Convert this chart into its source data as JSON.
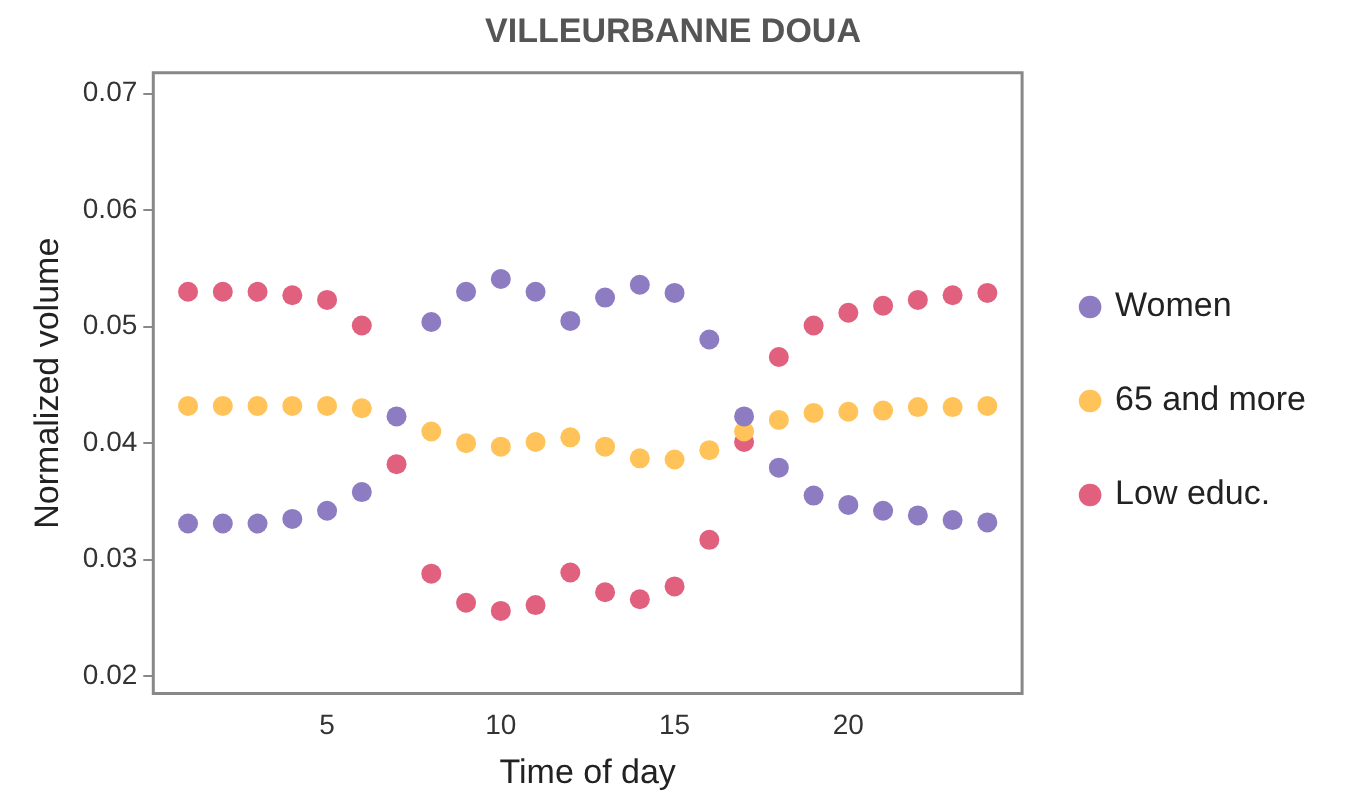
{
  "chart_data": {
    "type": "scatter",
    "title": "VILLEURBANNE DOUA",
    "xlabel": "Time of day",
    "ylabel": "Normalized volume",
    "x": [
      1,
      2,
      3,
      4,
      5,
      6,
      7,
      8,
      9,
      10,
      11,
      12,
      13,
      14,
      15,
      16,
      17,
      18,
      19,
      20,
      21,
      22,
      23,
      24
    ],
    "series": [
      {
        "name": "Women",
        "color": "#8e7cc3",
        "values": [
          0.0331,
          0.0331,
          0.0331,
          0.0335,
          0.0342,
          0.0358,
          0.0423,
          0.0504,
          0.053,
          0.0541,
          0.053,
          0.0505,
          0.0525,
          0.0536,
          0.0529,
          0.0489,
          0.0423,
          0.0379,
          0.0355,
          0.0347,
          0.0342,
          0.0338,
          0.0334,
          0.0332
        ]
      },
      {
        "name": "65 and more",
        "color": "#ffc35a",
        "values": [
          0.0432,
          0.0432,
          0.0432,
          0.0432,
          0.0432,
          0.043,
          null,
          0.041,
          0.04,
          0.0397,
          0.0401,
          0.0405,
          0.0397,
          0.0387,
          0.0386,
          0.0394,
          0.041,
          0.042,
          0.0426,
          0.0427,
          0.0428,
          0.0431,
          0.0431,
          0.0432
        ]
      },
      {
        "name": "Low educ.",
        "color": "#e0607e",
        "values": [
          0.053,
          0.053,
          0.053,
          0.0527,
          0.0523,
          0.0501,
          0.0382,
          0.0288,
          0.0263,
          0.0256,
          0.0261,
          0.0289,
          0.0272,
          0.0266,
          0.0277,
          0.0317,
          0.0401,
          0.0474,
          0.0501,
          0.0512,
          0.0518,
          0.0523,
          0.0527,
          0.0529
        ]
      }
    ],
    "xlim": [
      0,
      25
    ],
    "xticks": [
      5,
      10,
      15,
      20
    ],
    "ylim": [
      0.0185,
      0.0718
    ],
    "yticks": [
      0.02,
      0.03,
      0.04,
      0.05,
      0.06,
      0.07
    ],
    "grid": false,
    "legend": "right",
    "marker": "circle"
  }
}
